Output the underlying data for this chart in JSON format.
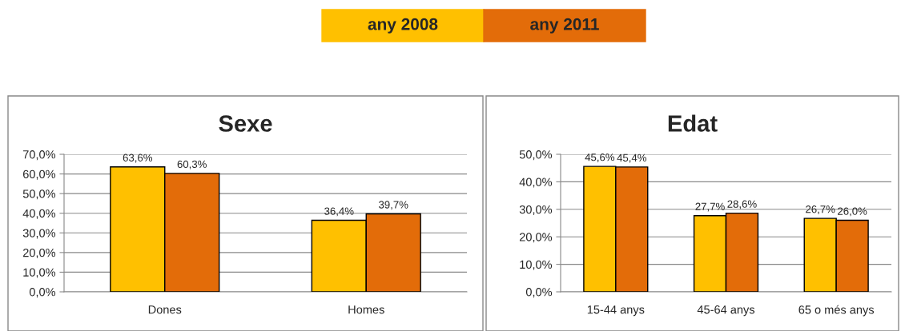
{
  "chart_data": [
    {
      "type": "bar",
      "title": "Sexe",
      "categories": [
        "Dones",
        "Homes"
      ],
      "legend": "top",
      "grid": "y",
      "data_labels": false,
      "ylim": [
        0,
        70
      ],
      "yticks": [
        {
          "value": 0,
          "label": "0,0%"
        },
        {
          "value": 10,
          "label": "10,0%"
        },
        {
          "value": 20,
          "label": "20,0%"
        },
        {
          "value": 30,
          "label": "30,0%"
        },
        {
          "value": 40,
          "label": "40,0%"
        },
        {
          "value": 50,
          "label": "50,0%"
        },
        {
          "value": 60,
          "label": "60,0%"
        },
        {
          "value": 70,
          "label": "70,0%"
        }
      ],
      "series": [
        {
          "name": "any 2008",
          "color": "#ffc000",
          "values": [
            63.6,
            36.4
          ],
          "value_labels": [
            "63,6%",
            "36,4%"
          ]
        },
        {
          "name": "any 2011",
          "color": "#e36c09",
          "values": [
            60.3,
            39.7
          ],
          "value_labels": [
            "60,3%",
            "39,7%"
          ]
        }
      ]
    },
    {
      "type": "bar",
      "title": "Edat",
      "categories": [
        "15-44 anys",
        "45-64 anys",
        "65 o més anys"
      ],
      "grid": "y",
      "data_labels": false,
      "ylim": [
        0,
        50
      ],
      "yticks": [
        {
          "value": 0,
          "label": "0,0%"
        },
        {
          "value": 10,
          "label": "10,0%"
        },
        {
          "value": 20,
          "label": "20,0%"
        },
        {
          "value": 30,
          "label": "30,0%"
        },
        {
          "value": 40,
          "label": "40,0%"
        },
        {
          "value": 50,
          "label": "50,0%"
        }
      ],
      "series": [
        {
          "color": "#ffc000",
          "values": [
            45.6,
            27.7,
            26.7
          ],
          "value_labels": [
            "45,6%",
            "27,7%",
            "26,7%"
          ]
        },
        {
          "color": "#e36c09",
          "values": [
            45.4,
            28.6,
            26.0
          ],
          "value_labels": [
            "45,4%",
            "28,6%",
            "26,0%"
          ]
        }
      ]
    }
  ]
}
